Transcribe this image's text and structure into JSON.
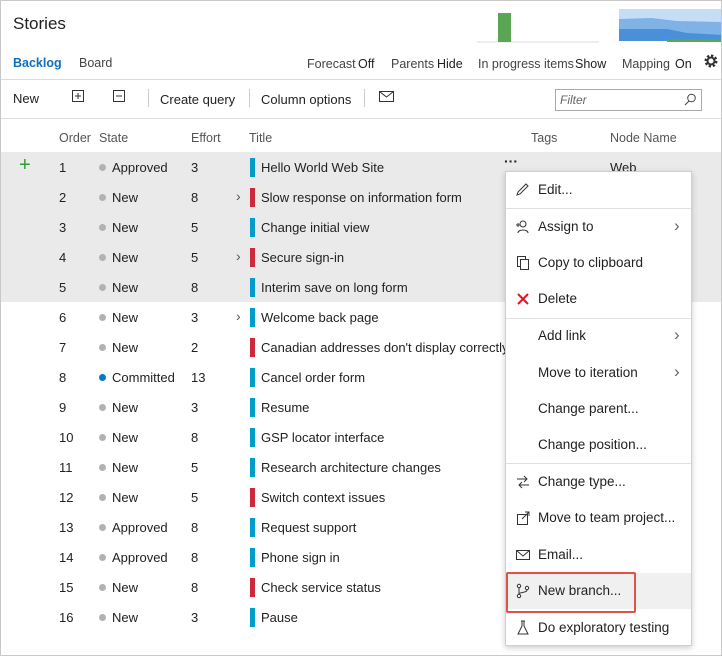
{
  "header": {
    "title": "Stories"
  },
  "tabs": [
    {
      "label": "Backlog",
      "active": true
    },
    {
      "label": "Board",
      "active": false
    }
  ],
  "settings": [
    {
      "label": "Forecast",
      "value": "Off"
    },
    {
      "label": "Parents",
      "value": "Hide"
    },
    {
      "label": "In progress items",
      "value": "Show"
    },
    {
      "label": "Mapping",
      "value": "On"
    }
  ],
  "toolbar": {
    "new": "New",
    "create_query": "Create query",
    "column_options": "Column options",
    "filter_placeholder": "Filter"
  },
  "table": {
    "columns": [
      "Order",
      "State",
      "Effort",
      "Title",
      "Tags",
      "Node Name"
    ],
    "rows": [
      {
        "order": 1,
        "state": "Approved",
        "effort": 3,
        "title": "Hello World Web Site",
        "node": "Web",
        "color": "#009ccc",
        "dot": "#b2b2b2",
        "selected": true,
        "expandable": false
      },
      {
        "order": 2,
        "state": "New",
        "effort": 8,
        "title": "Slow response on information form",
        "color": "#cc293d",
        "dot": "#b2b2b2",
        "selected": true,
        "expandable": true
      },
      {
        "order": 3,
        "state": "New",
        "effort": 5,
        "title": "Change initial view",
        "color": "#009ccc",
        "dot": "#b2b2b2",
        "selected": true,
        "expandable": false
      },
      {
        "order": 4,
        "state": "New",
        "effort": 5,
        "title": "Secure sign-in",
        "color": "#cc293d",
        "dot": "#b2b2b2",
        "selected": true,
        "expandable": true
      },
      {
        "order": 5,
        "state": "New",
        "effort": 8,
        "title": "Interim save on long form",
        "color": "#009ccc",
        "dot": "#b2b2b2",
        "selected": true,
        "expandable": false
      },
      {
        "order": 6,
        "state": "New",
        "effort": 3,
        "title": "Welcome back page",
        "color": "#009ccc",
        "dot": "#b2b2b2",
        "selected": false,
        "expandable": true
      },
      {
        "order": 7,
        "state": "New",
        "effort": 2,
        "title": "Canadian addresses don't display correctly",
        "color": "#cc293d",
        "dot": "#b2b2b2",
        "selected": false,
        "expandable": false
      },
      {
        "order": 8,
        "state": "Committed",
        "effort": 13,
        "title": "Cancel order form",
        "color": "#009ccc",
        "dot": "#007acc",
        "selected": false,
        "expandable": false
      },
      {
        "order": 9,
        "state": "New",
        "effort": 3,
        "title": "Resume",
        "color": "#009ccc",
        "dot": "#b2b2b2",
        "selected": false,
        "expandable": false
      },
      {
        "order": 10,
        "state": "New",
        "effort": 8,
        "title": "GSP locator interface",
        "color": "#009ccc",
        "dot": "#b2b2b2",
        "selected": false,
        "expandable": false
      },
      {
        "order": 11,
        "state": "New",
        "effort": 5,
        "title": "Research architecture changes",
        "color": "#009ccc",
        "dot": "#b2b2b2",
        "selected": false,
        "expandable": false
      },
      {
        "order": 12,
        "state": "New",
        "effort": 5,
        "title": "Switch context issues",
        "color": "#cc293d",
        "dot": "#b2b2b2",
        "selected": false,
        "expandable": false
      },
      {
        "order": 13,
        "state": "Approved",
        "effort": 8,
        "title": "Request support",
        "color": "#009ccc",
        "dot": "#b2b2b2",
        "selected": false,
        "expandable": false
      },
      {
        "order": 14,
        "state": "Approved",
        "effort": 8,
        "title": "Phone sign in",
        "color": "#009ccc",
        "dot": "#b2b2b2",
        "selected": false,
        "expandable": false
      },
      {
        "order": 15,
        "state": "New",
        "effort": 8,
        "title": "Check service status",
        "color": "#cc293d",
        "dot": "#b2b2b2",
        "selected": false,
        "expandable": false
      },
      {
        "order": 16,
        "state": "New",
        "effort": 3,
        "title": "Pause",
        "color": "#009ccc",
        "dot": "#b2b2b2",
        "selected": false,
        "expandable": false
      }
    ]
  },
  "context_menu": {
    "items": [
      {
        "label": "Edit...",
        "submenu": false,
        "separator_before": false
      },
      {
        "label": "Assign to",
        "submenu": true,
        "separator_before": true
      },
      {
        "label": "Copy to clipboard",
        "submenu": false,
        "separator_before": false
      },
      {
        "label": "Delete",
        "submenu": false,
        "separator_before": false
      },
      {
        "label": "Add link",
        "submenu": true,
        "separator_before": true
      },
      {
        "label": "Move to iteration",
        "submenu": true,
        "separator_before": false
      },
      {
        "label": "Change parent...",
        "submenu": false,
        "separator_before": false
      },
      {
        "label": "Change position...",
        "submenu": false,
        "separator_before": false
      },
      {
        "label": "Change type...",
        "submenu": false,
        "separator_before": true
      },
      {
        "label": "Move to team project...",
        "submenu": false,
        "separator_before": false
      },
      {
        "label": "Email...",
        "submenu": false,
        "separator_before": false
      },
      {
        "label": "New branch...",
        "submenu": false,
        "separator_before": true,
        "highlighted": true
      },
      {
        "label": "Do exploratory testing",
        "submenu": false,
        "separator_before": false
      }
    ]
  }
}
